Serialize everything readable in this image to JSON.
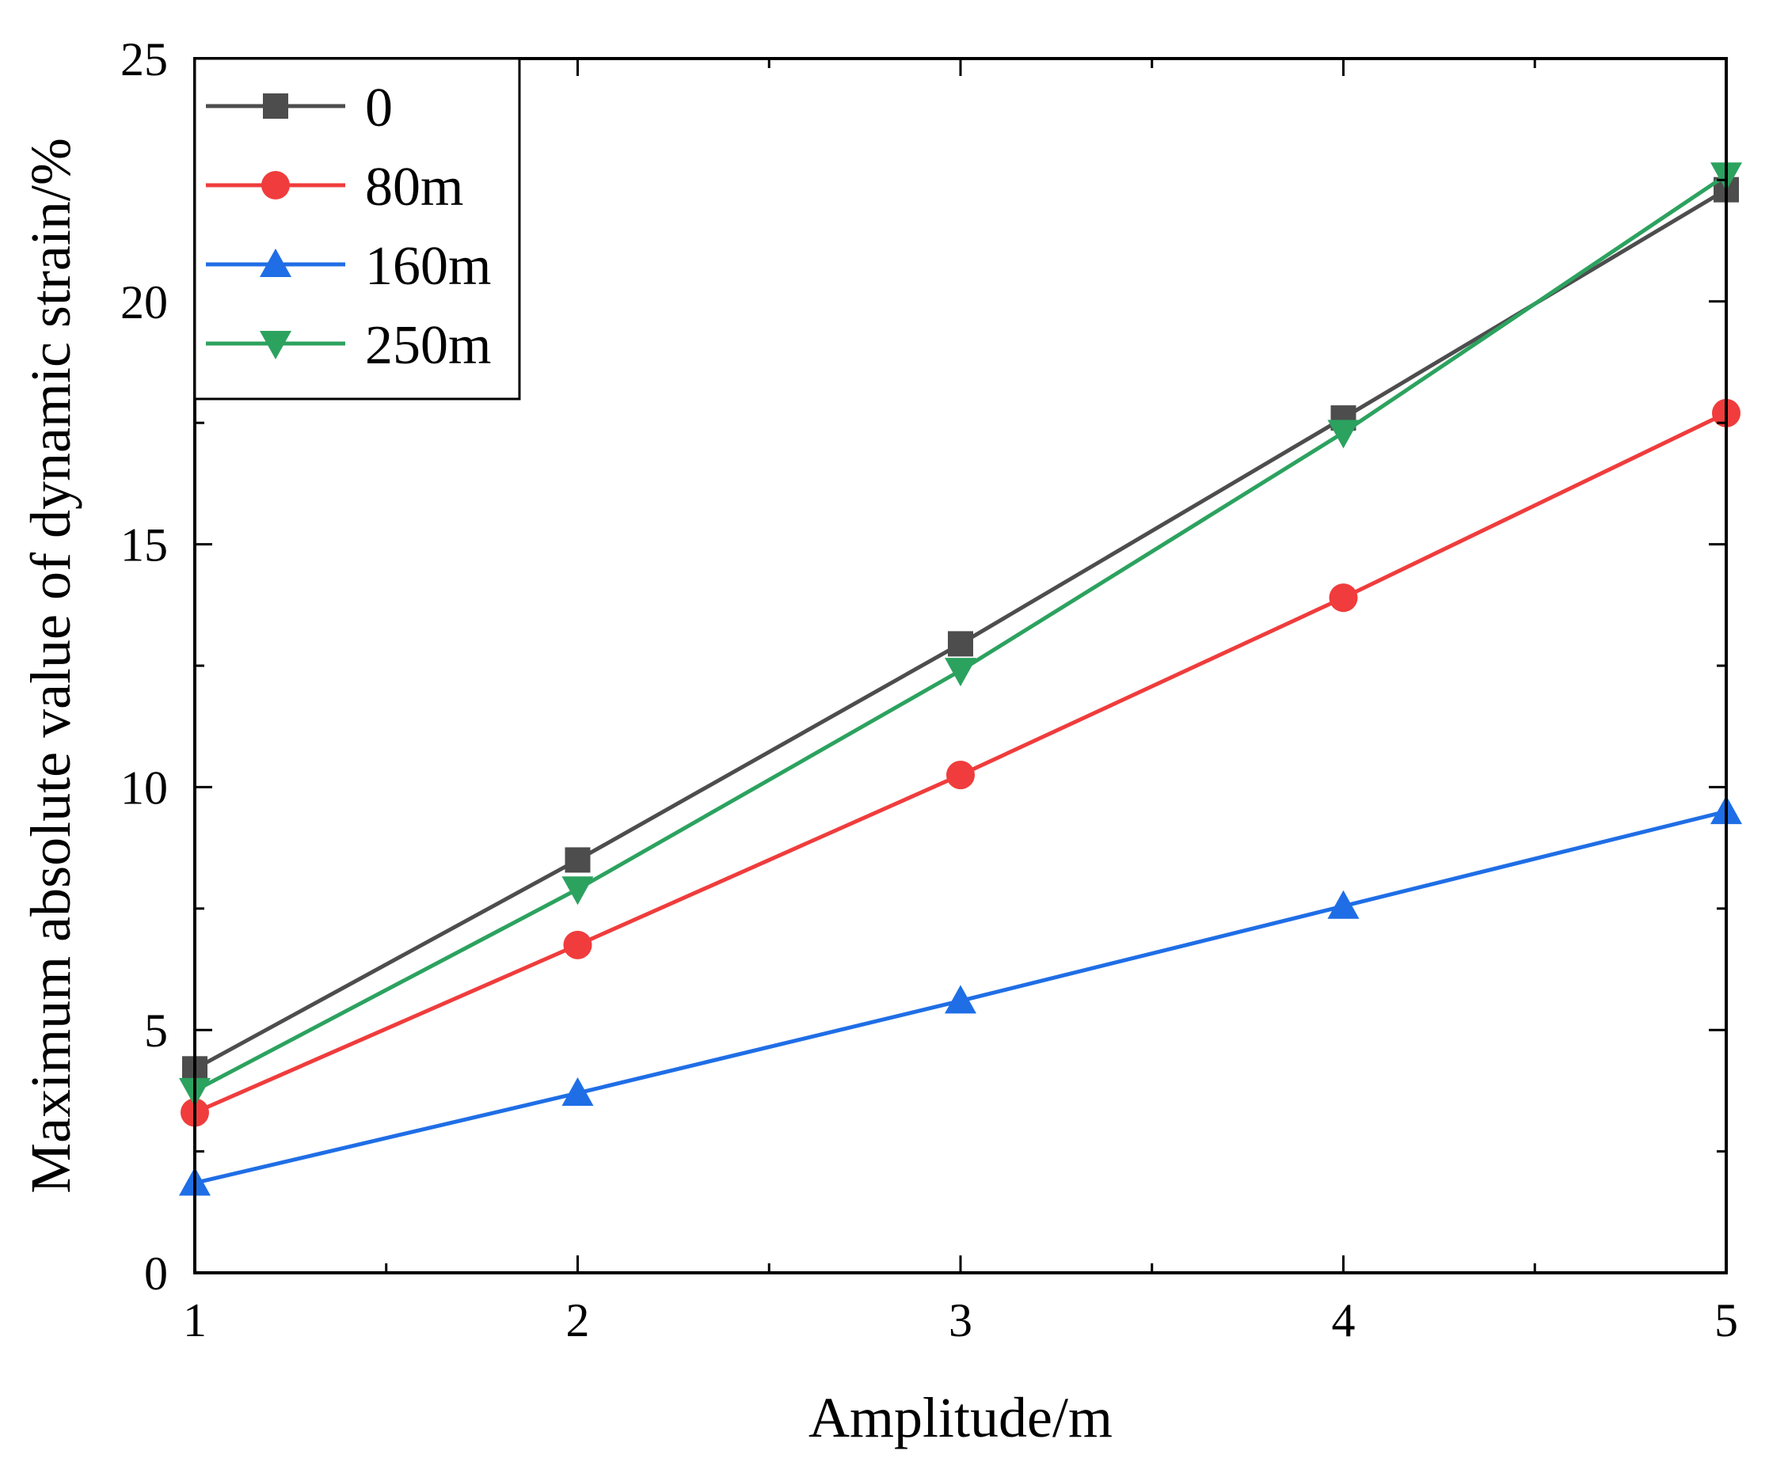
{
  "chart_data": {
    "type": "line",
    "title": "",
    "xlabel": "Amplitude/m",
    "ylabel": "Maximum absolute value of dynamic strain/%",
    "x": [
      1,
      2,
      3,
      4,
      5
    ],
    "xlim": [
      1,
      5
    ],
    "ylim": [
      0,
      25
    ],
    "x_ticks": [
      1,
      2,
      3,
      4,
      5
    ],
    "y_ticks": [
      0,
      5,
      10,
      15,
      20,
      25
    ],
    "grid": false,
    "legend_position": "top-left",
    "series": [
      {
        "name": "0",
        "values": [
          4.2,
          8.5,
          12.95,
          17.6,
          22.3
        ],
        "color": "#4d4d4d",
        "marker": "square"
      },
      {
        "name": "80m",
        "values": [
          3.3,
          6.75,
          10.25,
          13.9,
          17.7
        ],
        "color": "#f03c3c",
        "marker": "circle"
      },
      {
        "name": "160m",
        "values": [
          1.85,
          3.7,
          5.6,
          7.55,
          9.5
        ],
        "color": "#1f6ee6",
        "marker": "triangle-up"
      },
      {
        "name": "250m",
        "values": [
          3.75,
          7.9,
          12.4,
          17.3,
          22.6
        ],
        "color": "#2ca25f",
        "marker": "triangle-down"
      }
    ]
  }
}
